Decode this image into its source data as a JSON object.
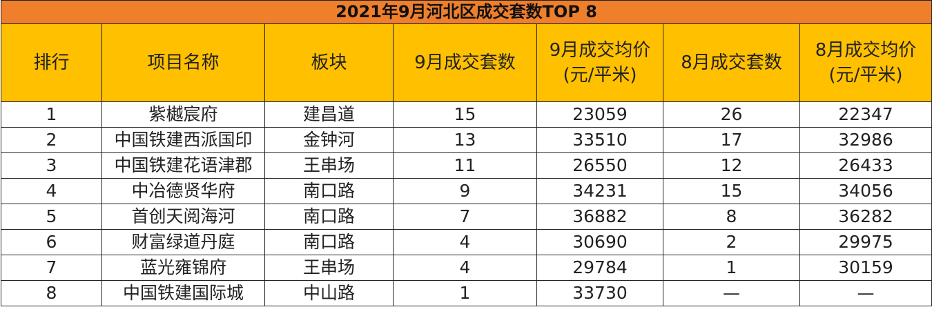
{
  "title": "2021年9月河北区成交套数TOP 8",
  "headers": {
    "rank": "排行",
    "project": "项目名称",
    "block": "板块",
    "sep_units": "9月成交套数",
    "sep_price_line1": "9月成交均价",
    "sep_price_line2": "(元/平米)",
    "aug_units": "8月成交套数",
    "aug_price_line1": "8月成交均价",
    "aug_price_line2": "(元/平米)"
  },
  "rows": [
    {
      "rank": "1",
      "project": "紫樾宸府",
      "block": "建昌道",
      "sep_units": "15",
      "sep_price": "23059",
      "aug_units": "26",
      "aug_price": "22347"
    },
    {
      "rank": "2",
      "project": "中国铁建西派国印",
      "block": "金钟河",
      "sep_units": "13",
      "sep_price": "33510",
      "aug_units": "17",
      "aug_price": "32986"
    },
    {
      "rank": "3",
      "project": "中国铁建花语津郡",
      "block": "王串场",
      "sep_units": "11",
      "sep_price": "26550",
      "aug_units": "12",
      "aug_price": "26433"
    },
    {
      "rank": "4",
      "project": "中冶德贤华府",
      "block": "南口路",
      "sep_units": "9",
      "sep_price": "34231",
      "aug_units": "15",
      "aug_price": "34056"
    },
    {
      "rank": "5",
      "project": "首创天阅海河",
      "block": "南口路",
      "sep_units": "7",
      "sep_price": "36882",
      "aug_units": "8",
      "aug_price": "36282"
    },
    {
      "rank": "6",
      "project": "财富绿道丹庭",
      "block": "南口路",
      "sep_units": "4",
      "sep_price": "30690",
      "aug_units": "2",
      "aug_price": "29975"
    },
    {
      "rank": "7",
      "project": "蓝光雍锦府",
      "block": "王串场",
      "sep_units": "4",
      "sep_price": "29784",
      "aug_units": "1",
      "aug_price": "30159"
    },
    {
      "rank": "8",
      "project": "中国铁建国际城",
      "block": "中山路",
      "sep_units": "1",
      "sep_price": "33730",
      "aug_units": "—",
      "aug_price": "—"
    }
  ],
  "colors": {
    "title_bg": "#f07f2c",
    "header_bg": "#ffc000",
    "border": "#222222"
  }
}
